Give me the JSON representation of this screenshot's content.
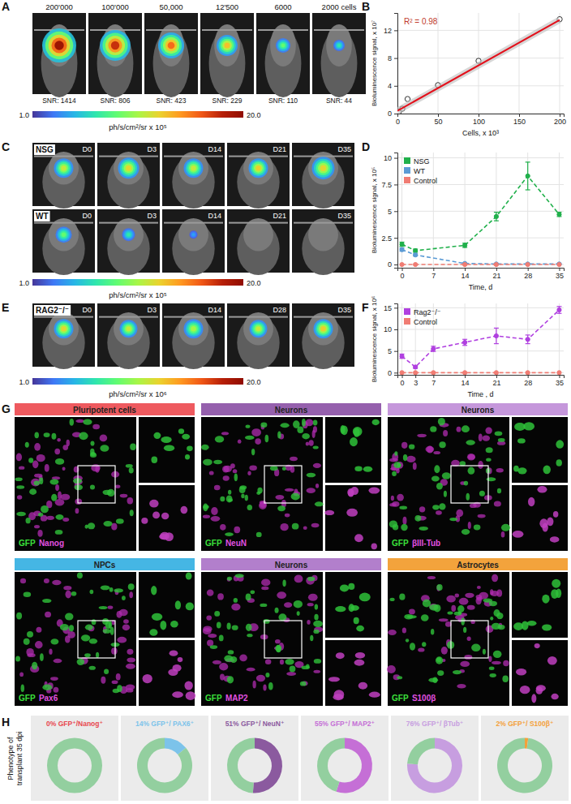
{
  "chart_data": [
    {
      "type": "scatter",
      "xlabel": "Cells, x 10³",
      "ylabel": "Bioluminescence signal, x 10⁷",
      "xlim": [
        0,
        205
      ],
      "ylim": [
        0,
        14.5
      ],
      "xticks": [
        0,
        50,
        100,
        150,
        200
      ],
      "yticks": [
        0,
        4,
        8,
        12
      ],
      "grid": true,
      "annotations": [
        "R² = 0.98"
      ],
      "series": [
        {
          "type": "scatter",
          "marker": "open_circle",
          "color": "#333333",
          "x": [
            2,
            6,
            12.5,
            50,
            100,
            200
          ],
          "values": [
            0.3,
            0.7,
            2.1,
            4.1,
            7.6,
            13.6
          ]
        },
        {
          "type": "line",
          "line_style": "solid",
          "color": "#e3101b",
          "x": [
            0,
            200
          ],
          "values": [
            0.4,
            13.5
          ]
        }
      ]
    },
    {
      "type": "line",
      "xlabel": "Time, d",
      "ylabel": "Bioluminescence signal, x 10⁵",
      "x": [
        0,
        3,
        14,
        21,
        28,
        35
      ],
      "xlim": [
        -1,
        36
      ],
      "ylim": [
        -0.3,
        10.5
      ],
      "xticks": [
        0,
        7,
        14,
        21,
        28,
        35
      ],
      "yticks": [
        0,
        2.5,
        5,
        7.5,
        10
      ],
      "grid": true,
      "legend": "top-left",
      "series": [
        {
          "name": "NSG",
          "color": "#20b04b",
          "line_style": "dashed",
          "marker": "circle",
          "values": [
            1.9,
            1.3,
            1.8,
            4.5,
            8.3,
            4.7
          ],
          "error": [
            0.2,
            0.15,
            0.2,
            0.4,
            1.3,
            0.2
          ]
        },
        {
          "name": "WT",
          "color": "#5b9bd5",
          "line_style": "dashed",
          "marker": "circle",
          "values": [
            1.4,
            0.9,
            0.1,
            0.05,
            0.05,
            0.05
          ],
          "error": [
            0.15,
            0.1,
            0.05,
            0.03,
            0.03,
            0.03
          ]
        },
        {
          "name": "Control",
          "color": "#f07c73",
          "line_style": "dashed",
          "marker": "circle",
          "values": [
            0,
            0,
            0,
            0,
            0,
            0
          ]
        }
      ]
    },
    {
      "type": "line",
      "xlabel": "Time , d",
      "ylabel": "Bioluminescence signal, x 10⁶",
      "x": [
        0,
        3,
        7,
        14,
        21,
        28,
        35
      ],
      "xlim": [
        -1,
        36
      ],
      "ylim": [
        -0.5,
        16
      ],
      "xticks": [
        0,
        3,
        7,
        14,
        21,
        28,
        35
      ],
      "yticks": [
        0,
        5,
        10,
        15
      ],
      "grid": true,
      "legend": "top-left",
      "series": [
        {
          "name": "Rag2⁻/⁻",
          "color": "#b040e0",
          "line_style": "dashed",
          "marker": "circle",
          "values": [
            3.8,
            1.3,
            5.5,
            7,
            8.5,
            7.7,
            14.5
          ],
          "error": [
            0.5,
            0.3,
            0.6,
            0.7,
            1.8,
            1,
            0.8
          ]
        },
        {
          "name": "Control",
          "color": "#f07c73",
          "line_style": "dashed",
          "marker": "circle",
          "values": [
            0,
            0,
            0,
            0,
            0,
            0,
            0
          ]
        }
      ]
    },
    {
      "type": "pie",
      "title": "0% GFP⁺/Nanog⁺",
      "values": [
        0,
        100
      ],
      "colors": [
        "#e8484f",
        "#93cf9f"
      ]
    },
    {
      "type": "pie",
      "title": "14% GFP⁺/ PAX6⁺",
      "values": [
        14,
        86
      ],
      "colors": [
        "#7cc3ea",
        "#93cf9f"
      ]
    },
    {
      "type": "pie",
      "title": "51% GFP⁺/ NeuN⁺",
      "values": [
        51,
        49
      ],
      "colors": [
        "#8b5a9f",
        "#93cf9f"
      ]
    },
    {
      "type": "pie",
      "title": "55% GFP⁺/ MAP2⁺",
      "values": [
        55,
        45
      ],
      "colors": [
        "#c56fd6",
        "#93cf9f"
      ]
    },
    {
      "type": "pie",
      "title": "76% GFP⁺/ βTub⁺",
      "values": [
        76,
        24
      ],
      "colors": [
        "#c79ee0",
        "#93cf9f"
      ]
    },
    {
      "type": "pie",
      "title": "2% GFP⁺/ S100β⁺",
      "values": [
        2,
        98
      ],
      "colors": [
        "#f4a13a",
        "#93cf9f"
      ]
    }
  ],
  "figure": {
    "panel_labels": [
      "A",
      "B",
      "C",
      "D",
      "E",
      "F",
      "G",
      "H"
    ],
    "A": {
      "images": [
        {
          "title": "200'000",
          "snr": "SNR: 1414"
        },
        {
          "title": "100'000",
          "snr": "SNR: 806"
        },
        {
          "title": "50,000",
          "snr": "SNR: 423"
        },
        {
          "title": "12'500",
          "snr": "SNR: 229"
        },
        {
          "title": "6000",
          "snr": "SNR: 110"
        },
        {
          "title": "2000 cells",
          "snr": "SNR: 44"
        }
      ],
      "colorbar": {
        "range": [
          1,
          20
        ],
        "ticks": [
          {
            "value": 1,
            "label": "1.0"
          },
          {
            "value": 20,
            "label": "20.0"
          }
        ],
        "label": "ph/s/cm²/sr x 10⁵"
      }
    },
    "C": {
      "rows": [
        {
          "name": "NSG",
          "days": [
            "D0",
            "D3",
            "D14",
            "D21",
            "D35"
          ]
        },
        {
          "name": "WT",
          "days": [
            "D0",
            "D3",
            "D14",
            "D21",
            "D35"
          ]
        }
      ],
      "colorbar": {
        "range": [
          1,
          20
        ],
        "ticks": [
          {
            "value": 1,
            "label": "1.0"
          },
          {
            "value": 20,
            "label": "20.0"
          }
        ],
        "label": "ph/s/cm²/sr x 10⁵"
      }
    },
    "E": {
      "rows": [
        {
          "name": "RAG2⁻/⁻",
          "days": [
            "D0",
            "D3",
            "D14",
            "D28",
            "D35"
          ]
        }
      ],
      "colorbar": {
        "range": [
          1,
          20
        ],
        "ticks": [
          {
            "value": 1,
            "label": "1.0"
          },
          {
            "value": 20,
            "label": "20.0"
          }
        ],
        "label": "ph/s/cm²/sr x 10⁶"
      }
    },
    "G": {
      "panels": [
        {
          "header": "Pluripotent cells",
          "color": "#ee5a5f",
          "stains": [
            "GFP",
            "Nanog"
          ]
        },
        {
          "header": "Neurons",
          "color": "#9560ad",
          "stains": [
            "GFP",
            "NeuN"
          ]
        },
        {
          "header": "Neurons",
          "color": "#c597db",
          "stains": [
            "GFP",
            "βIII-Tub"
          ]
        },
        {
          "header": "NPCs",
          "color": "#45b6e4",
          "stains": [
            "GFP",
            "Pax6"
          ]
        },
        {
          "header": "Neurons",
          "color": "#b27fcc",
          "stains": [
            "GFP",
            "MAP2"
          ]
        },
        {
          "header": "Astrocytes",
          "color": "#f3a33c",
          "stains": [
            "GFP",
            "S100β"
          ]
        }
      ]
    },
    "H": {
      "ylabel": [
        "Phenotype of",
        "transplant 35 dpi"
      ]
    }
  }
}
